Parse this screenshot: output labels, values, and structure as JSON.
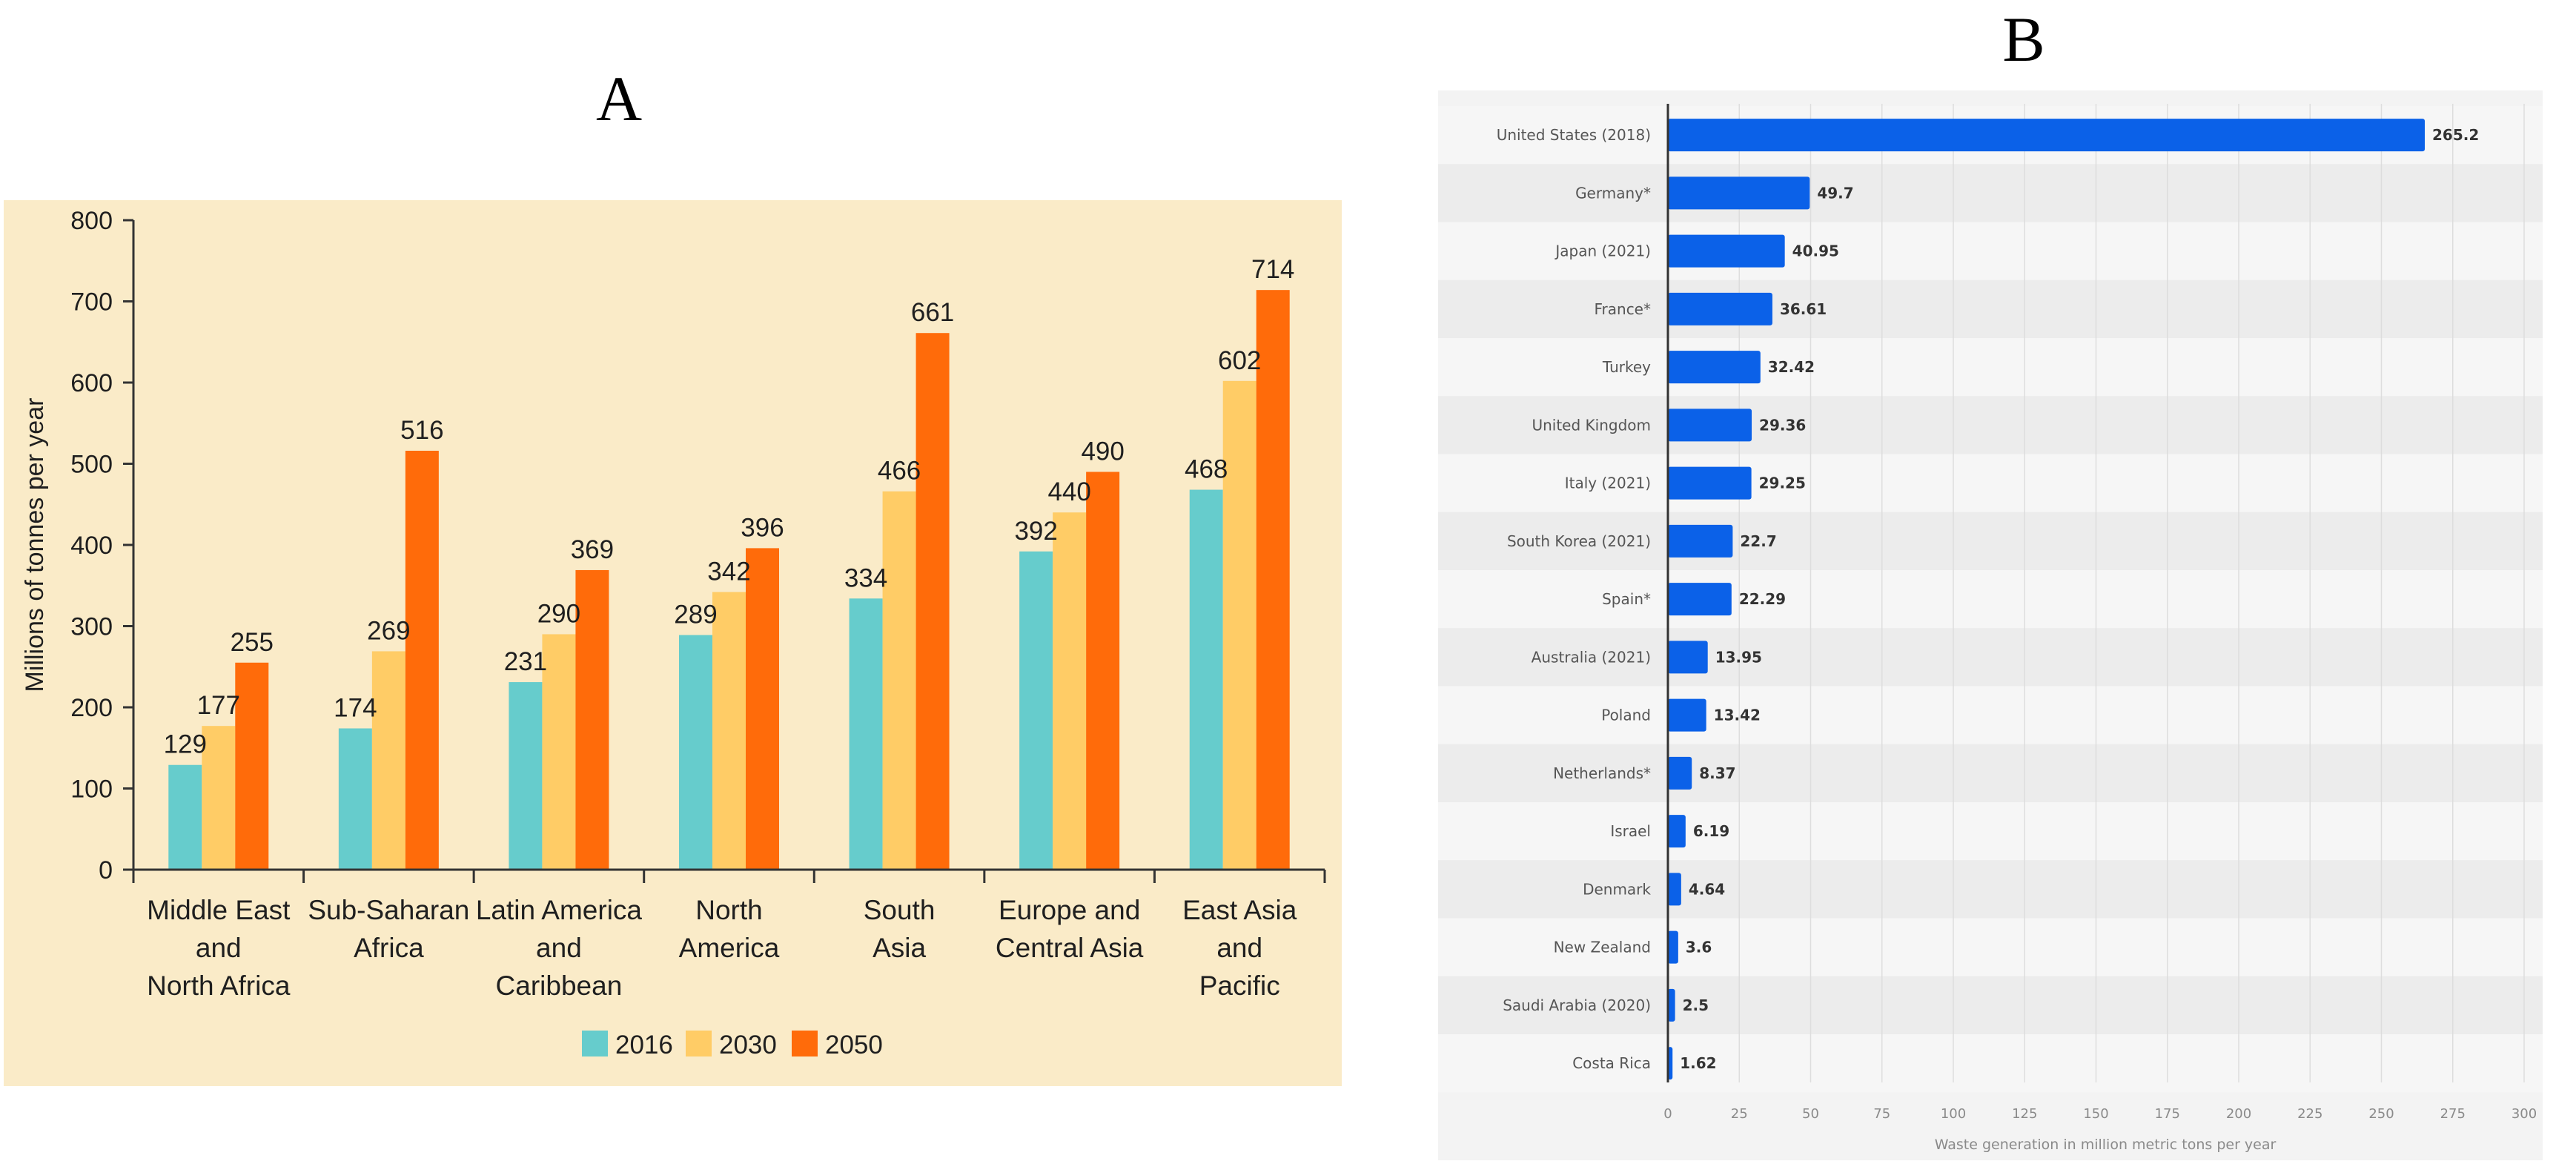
{
  "panels": {
    "a_label": "A",
    "b_label": "B"
  },
  "colors": {
    "panel_a_background": "#faebc8",
    "series_2016": "#66cccc",
    "series_2030": "#ffcc66",
    "series_2050": "#ff6b0a",
    "panel_b_bar": "#0b61e8",
    "panel_b_background": "#f3f3f3"
  },
  "chart_data": [
    {
      "type": "bar",
      "title": "",
      "xlabel": "",
      "ylabel": "Millions of tonnes per year",
      "ylim": [
        0,
        800
      ],
      "yticks": [
        0,
        100,
        200,
        300,
        400,
        500,
        600,
        700,
        800
      ],
      "categories": [
        [
          "Middle East",
          "and",
          "North Africa"
        ],
        [
          "Sub-Saharan",
          "Africa"
        ],
        [
          "Latin America",
          "and",
          "Caribbean"
        ],
        [
          "North",
          "America"
        ],
        [
          "South",
          "Asia"
        ],
        [
          "Europe and",
          "Central Asia"
        ],
        [
          "East Asia",
          "and",
          "Pacific"
        ]
      ],
      "series": [
        {
          "name": "2016",
          "values": [
            129,
            174,
            231,
            289,
            334,
            392,
            468
          ]
        },
        {
          "name": "2030",
          "values": [
            177,
            269,
            290,
            342,
            466,
            440,
            602
          ]
        },
        {
          "name": "2050",
          "values": [
            255,
            516,
            369,
            396,
            661,
            490,
            714
          ]
        }
      ],
      "legend": "bottom-center",
      "grid": false
    },
    {
      "type": "bar",
      "orientation": "horizontal",
      "title": "",
      "xlabel": "Waste generation in million metric tons per year",
      "ylabel": "",
      "xlim": [
        0,
        300
      ],
      "xticks": [
        0,
        25,
        50,
        75,
        100,
        125,
        150,
        175,
        200,
        225,
        250,
        275,
        300
      ],
      "categories": [
        "United States (2018)",
        "Germany*",
        "Japan (2021)",
        "France*",
        "Turkey",
        "United Kingdom",
        "Italy (2021)",
        "South Korea (2021)",
        "Spain*",
        "Australia (2021)",
        "Poland",
        "Netherlands*",
        "Israel",
        "Denmark",
        "New Zealand",
        "Saudi Arabia (2020)",
        "Costa Rica"
      ],
      "values": [
        265.2,
        49.7,
        40.95,
        36.61,
        32.42,
        29.36,
        29.25,
        22.7,
        22.29,
        13.95,
        13.42,
        8.37,
        6.19,
        4.64,
        3.6,
        2.5,
        1.62
      ],
      "value_labels": [
        "265.2",
        "49.7",
        "40.95",
        "36.61",
        "32.42",
        "29.36",
        "29.25",
        "22.7",
        "22.29",
        "13.95",
        "13.42",
        "8.37",
        "6.19",
        "4.64",
        "3.6",
        "2.5",
        "1.62"
      ],
      "grid": true
    }
  ]
}
